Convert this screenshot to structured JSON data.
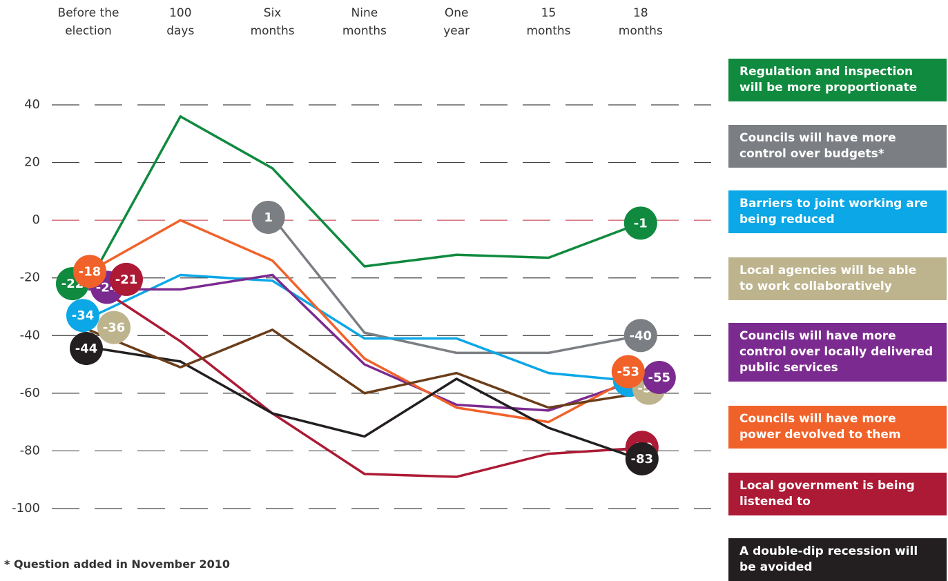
{
  "chart_data": {
    "type": "line",
    "categories": [
      "Before the\nelection",
      "100\ndays",
      "Six\nmonths",
      "Nine\nmonths",
      "One\nyear",
      "15\nmonths",
      "18\nmonths"
    ],
    "ylim": [
      -100,
      40
    ],
    "yticks": [
      40,
      20,
      0,
      -20,
      -40,
      -60,
      -80,
      -100
    ],
    "grid": true,
    "series": [
      {
        "name": "Regulation and inspection\nwill be more proportionate",
        "color": "#0f8a3e",
        "values": [
          -22,
          36,
          18,
          -16,
          -12,
          -13,
          -1
        ]
      },
      {
        "name": "Councils will have more\ncontrol over budgets*",
        "color": "#7b7e83",
        "values": [
          null,
          null,
          1,
          -39,
          -46,
          -46,
          -40
        ]
      },
      {
        "name": "Barriers to joint working are\nbeing reduced",
        "color": "#0ba7e6",
        "values": [
          -34,
          -19,
          -21,
          -41,
          -41,
          -53,
          -56
        ]
      },
      {
        "name": "Local agencies will be able\nto work collaboratively",
        "color": "#bdb48e",
        "values": [
          -36,
          null,
          null,
          null,
          null,
          null,
          -59
        ]
      },
      {
        "name": "Councils will have more\ncontrol over locally delivered\npublic services",
        "color": "#7b2a8f",
        "values": [
          -24,
          -24,
          -19,
          -50,
          -64,
          -66,
          -55
        ]
      },
      {
        "name": "Councils will have more\npower devolved to them",
        "color": "#f0622a",
        "values": [
          -18,
          0,
          -14,
          -48,
          -65,
          -70,
          -53
        ]
      },
      {
        "name": "Local government is being\nlistened to",
        "color": "#ad1a35",
        "values": [
          -21,
          -42,
          -67,
          -88,
          -89,
          -81,
          -79
        ]
      },
      {
        "name": "A double-dip recession will\nbe avoided",
        "color": "#231f20",
        "values": [
          -44,
          -49,
          -67,
          -75,
          -55,
          -72,
          -83
        ]
      },
      {
        "name": null,
        "color": "#6b3e1b",
        "values": [
          -38,
          -51,
          -38,
          -60,
          -53,
          -65,
          -60
        ]
      }
    ],
    "footnote": "* Question added in November 2010"
  }
}
